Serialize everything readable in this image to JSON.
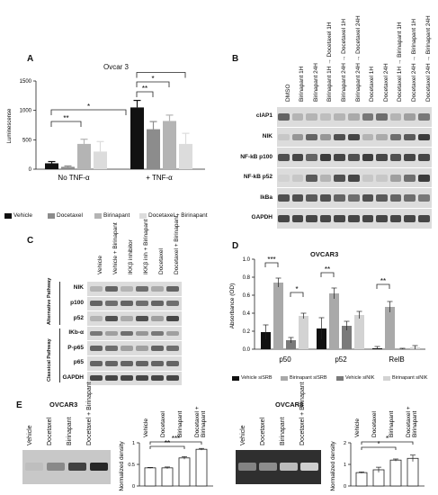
{
  "panels": {
    "A": {
      "letter": "A",
      "title": "Ovcar 3",
      "ylabel": "Luminescense",
      "yticks": [
        "0",
        "500",
        "1000",
        "1500"
      ],
      "groups": [
        "No TNF-α",
        "+ TNF-α"
      ],
      "legend": [
        "Vehicle",
        "Docetaxel",
        "Birinapant",
        "Docetaxel + Birinapant"
      ],
      "sig": [
        "*",
        "**",
        "**",
        "*",
        "***"
      ]
    },
    "B": {
      "letter": "B",
      "lanes": [
        "DMSO",
        "Birinapant 1H",
        "Birinapant 24H",
        "Birinapant 1H → Docetaxel 1H",
        "Birinapant 24H → Docetaxel 1H",
        "Birinapant 24H → Docetaxel 24H",
        "Docetaxel 1H",
        "Docetaxel 24H",
        "Docetaxel 1H → Birinapant 1H",
        "Docetaxel 24H → Birinapant 1H",
        "Docetaxel 24H → Birinapant 24H"
      ],
      "rows": [
        "cIAP1",
        "NIK",
        "NF-kB p100",
        "NF-kB p52",
        "IkBa",
        "GAPDH"
      ]
    },
    "C": {
      "letter": "C",
      "lanes": [
        "Vehicle",
        "Vehicle + Birinapant",
        "IKKβ inhibitor",
        "IKKβ inh + Birinapant",
        "Docetaxel",
        "Docetaxel + Birinapant"
      ],
      "rows": [
        "NIK",
        "p100",
        "p52",
        "IKb-α",
        "P-p65",
        "p65",
        "GAPDH"
      ],
      "pathway_alt": "Alternative Pathway",
      "pathway_classical": "Classical Pathway"
    },
    "D": {
      "letter": "D",
      "title": "OVCAR3",
      "ylabel": "Absorbance (OD)",
      "yticks": [
        "0.0",
        "0.2",
        "0.4",
        "0.6",
        "0.8",
        "1.0"
      ],
      "legend": [
        "Vehicle siSRB",
        "Birinapant siSRB",
        "Vehicle siNIK",
        "Birinapant siNIK"
      ],
      "sig": [
        "***",
        "*",
        "**",
        "**"
      ]
    },
    "E": {
      "letter": "E",
      "left_title": "OVCAR3",
      "right_title": "OVCAR8",
      "lanes": [
        "Vehicle",
        "Docetaxel",
        "Birinapant",
        "Docetaxel + Birinapant"
      ],
      "ylabel": "Normalized density",
      "left_sig": [
        "**",
        "***"
      ],
      "right_sig": [
        "*",
        "*"
      ]
    }
  },
  "chart_data": [
    {
      "type": "bar",
      "title": "Ovcar 3",
      "categories": [
        "No TNF-α",
        "+ TNF-α"
      ],
      "ylabel": "Luminescense",
      "ylim": [
        0,
        1500
      ],
      "series": [
        {
          "name": "Vehicle",
          "values": [
            100,
            1050
          ],
          "errors": [
            30,
            120
          ]
        },
        {
          "name": "Docetaxel",
          "values": [
            40,
            680
          ],
          "errors": [
            15,
            130
          ]
        },
        {
          "name": "Birinapant",
          "values": [
            430,
            820
          ],
          "errors": [
            80,
            100
          ]
        },
        {
          "name": "Docetaxel + Birinapant",
          "values": [
            300,
            430
          ],
          "errors": [
            170,
            180
          ]
        }
      ],
      "colors": [
        "#111111",
        "#8c8c8c",
        "#b4b4b4",
        "#dcdcdc"
      ]
    },
    {
      "type": "bar",
      "title": "OVCAR3",
      "categories": [
        "p50",
        "p52",
        "RelB"
      ],
      "ylabel": "Absorbance (OD)",
      "ylim": [
        0,
        1.0
      ],
      "series": [
        {
          "name": "Vehicle siSRB",
          "values": [
            0.19,
            0.23,
            0.01
          ],
          "errors": [
            0.08,
            0.12,
            0.02
          ]
        },
        {
          "name": "Birinapant siSRB",
          "values": [
            0.74,
            0.62,
            0.47
          ],
          "errors": [
            0.05,
            0.06,
            0.06
          ]
        },
        {
          "name": "Vehicle siNIK",
          "values": [
            0.1,
            0.26,
            0.0
          ],
          "errors": [
            0.03,
            0.05,
            0.01
          ]
        },
        {
          "name": "Birinapant siNIK",
          "values": [
            0.37,
            0.38,
            0.02
          ],
          "errors": [
            0.03,
            0.04,
            0.02
          ]
        }
      ],
      "colors": [
        "#111111",
        "#a9a9a9",
        "#7a7a7a",
        "#d3d3d3"
      ]
    },
    {
      "type": "bar",
      "categories": [
        "Vehicle",
        "Docetaxel",
        "Birinapant",
        "Docetaxel + Birinapant"
      ],
      "ylabel": "Normalized density",
      "ylim": [
        0,
        1.0
      ],
      "values": [
        0.42,
        0.42,
        0.65,
        0.85
      ],
      "errors": [
        0.01,
        0.02,
        0.03,
        0.02
      ]
    },
    {
      "type": "bar",
      "categories": [
        "Vehicle",
        "Docetaxel",
        "Birinapant",
        "Docetaxel + Birinapant"
      ],
      "ylabel": "Normalized density",
      "ylim": [
        0,
        2.0
      ],
      "values": [
        0.62,
        0.75,
        1.2,
        1.28
      ],
      "errors": [
        0.03,
        0.12,
        0.05,
        0.15
      ]
    }
  ]
}
